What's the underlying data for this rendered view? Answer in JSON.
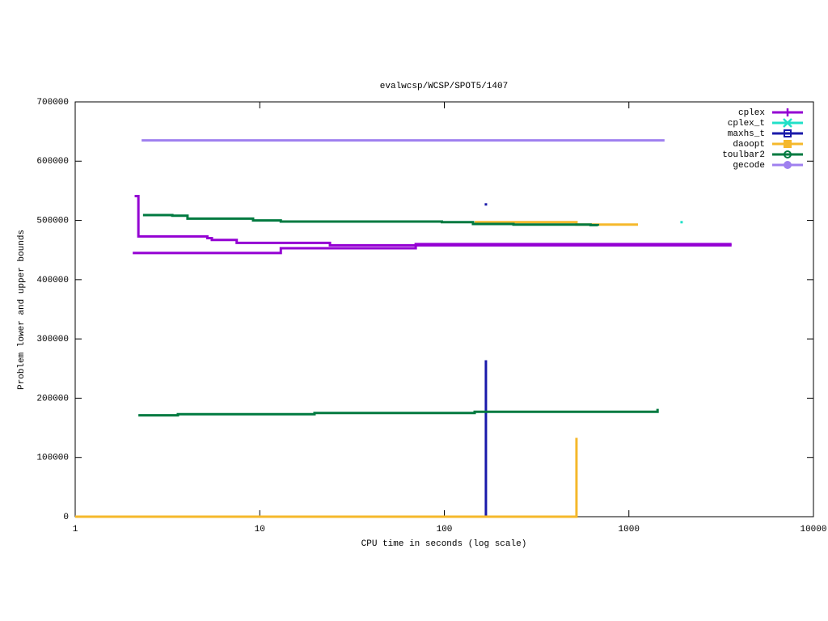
{
  "chart_data": {
    "type": "line",
    "step": true,
    "title": "evalwcsp/WCSP/SPOT5/1407",
    "xlabel": "CPU time in seconds (log scale)",
    "ylabel": "Problem lower and upper bounds",
    "xlog": true,
    "xlim": [
      1,
      10000
    ],
    "xticks": [
      1,
      10,
      100,
      1000,
      10000
    ],
    "ylim": [
      0,
      700000
    ],
    "yticks": [
      0,
      100000,
      200000,
      300000,
      400000,
      500000,
      600000,
      700000
    ],
    "legend": "top-right",
    "series": [
      {
        "name": "cplex",
        "color": "#9400d3",
        "marker": "plus",
        "x": [
          2.1,
          2.2,
          5.2,
          5.5,
          7.5,
          24,
          3600,
          null,
          2.05,
          13,
          70,
          3600
        ],
        "values": [
          541000,
          473000,
          470000,
          467000,
          462000,
          458000,
          458000,
          null,
          445000,
          453000,
          460000,
          460000
        ]
      },
      {
        "name": "cplex_t",
        "color": "#20e0c8",
        "marker": "cross",
        "x": [
          1930
        ],
        "values": [
          497000
        ]
      },
      {
        "name": "maxhs_t",
        "color": "#1a1aaa",
        "marker": "open-square",
        "x": [
          168,
          null,
          168,
          168
        ],
        "values": [
          527000,
          null,
          0,
          264000
        ]
      },
      {
        "name": "daoopt",
        "color": "#f5b82b",
        "marker": "square",
        "x": [
          146,
          520,
          1120,
          null,
          1,
          520,
          520
        ],
        "values": [
          497000,
          493000,
          493000,
          null,
          0,
          0,
          133000
        ]
      },
      {
        "name": "toulbar2",
        "color": "#007a40",
        "marker": "open-circle",
        "x": [
          2.33,
          3.36,
          4.06,
          9.2,
          13,
          97,
          143,
          237,
          620,
          680,
          null,
          2.2,
          3.6,
          19.8,
          146,
          1430,
          1430
        ],
        "values": [
          509000,
          508000,
          503000,
          500000,
          498000,
          497000,
          494000,
          493000,
          492000,
          491000,
          null,
          171000,
          173000,
          175000,
          177000,
          177000,
          182000
        ]
      },
      {
        "name": "gecode",
        "color": "#9f80ef",
        "marker": "circle",
        "x": [
          2.29,
          1560
        ],
        "values": [
          635000,
          635000
        ]
      }
    ]
  }
}
